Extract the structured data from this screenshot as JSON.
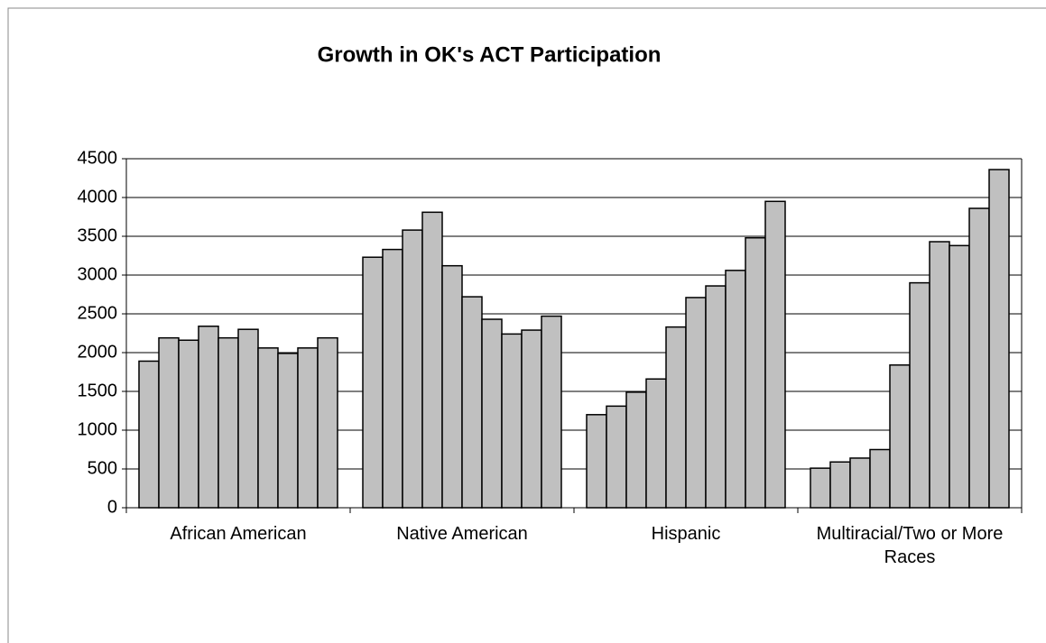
{
  "chart_data": {
    "type": "bar",
    "title": "Growth in OK's ACT Participation",
    "categories": [
      "African American",
      "Native American",
      "Hispanic",
      "Multiracial/Two or More Races"
    ],
    "series": [
      {
        "color": "#c0c0c0",
        "values": [
          1890,
          3230,
          1200,
          510
        ]
      },
      {
        "color": "#c0c0c0",
        "values": [
          2190,
          3330,
          1310,
          590
        ]
      },
      {
        "color": "#c0c0c0",
        "values": [
          2160,
          3580,
          1490,
          640
        ]
      },
      {
        "color": "#c0c0c0",
        "values": [
          2340,
          3810,
          1660,
          750
        ]
      },
      {
        "color": "#c0c0c0",
        "values": [
          2190,
          3120,
          2330,
          1840
        ]
      },
      {
        "color": "#c0c0c0",
        "values": [
          2300,
          2720,
          2710,
          2900
        ]
      },
      {
        "color": "#c0c0c0",
        "values": [
          2060,
          2430,
          2860,
          3430
        ]
      },
      {
        "color": "#c0c0c0",
        "values": [
          1990,
          2240,
          3060,
          3380
        ]
      },
      {
        "color": "#c0c0c0",
        "values": [
          2060,
          2290,
          3480,
          3860
        ]
      },
      {
        "color": "#c0c0c0",
        "values": [
          2190,
          2470,
          3950,
          4360
        ]
      }
    ],
    "ylim": [
      0,
      4500
    ],
    "yticks": [
      0,
      500,
      1000,
      1500,
      2000,
      2500,
      3000,
      3500,
      4000,
      4500
    ],
    "grid": true
  }
}
